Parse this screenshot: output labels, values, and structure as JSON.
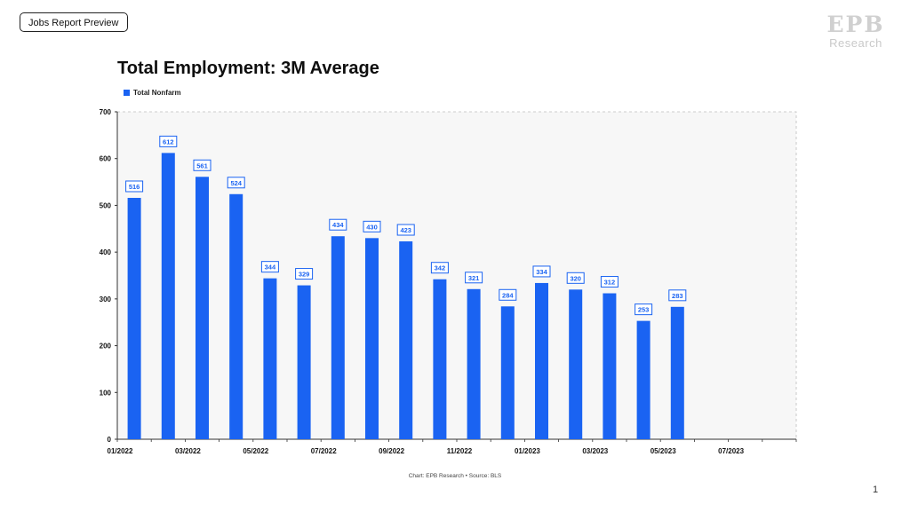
{
  "header": {
    "tag_label": "Jobs Report Preview",
    "logo_mark": "EPB",
    "logo_sub": "Research"
  },
  "chart_data": {
    "type": "bar",
    "title": "Total Employment: 3M Average",
    "series": [
      {
        "name": "Total Nonfarm",
        "color": "#1a63f2",
        "values": [
          516,
          612,
          561,
          524,
          344,
          329,
          434,
          430,
          423,
          342,
          321,
          284,
          334,
          320,
          312,
          253,
          283,
          null,
          null,
          null
        ]
      }
    ],
    "categories": [
      "01/2022",
      "02/2022",
      "03/2022",
      "04/2022",
      "05/2022",
      "06/2022",
      "07/2022",
      "08/2022",
      "09/2022",
      "10/2022",
      "11/2022",
      "12/2022",
      "01/2023",
      "02/2023",
      "03/2023",
      "04/2023",
      "05/2023",
      "06/2023",
      "07/2023",
      "08/2023"
    ],
    "x_tick_labels": [
      "01/2022",
      "03/2022",
      "05/2022",
      "07/2022",
      "09/2022",
      "11/2022",
      "01/2023",
      "03/2023",
      "05/2023",
      "07/2023"
    ],
    "y_ticks": [
      0,
      100,
      200,
      300,
      400,
      500,
      600,
      700
    ],
    "ylim": [
      0,
      700
    ],
    "xlabel": "",
    "ylabel": "",
    "grid": false,
    "legend_position": "top-left",
    "data_labels": true,
    "footer": "Chart: EPB Research •  Source: BLS"
  },
  "page_number": "1"
}
